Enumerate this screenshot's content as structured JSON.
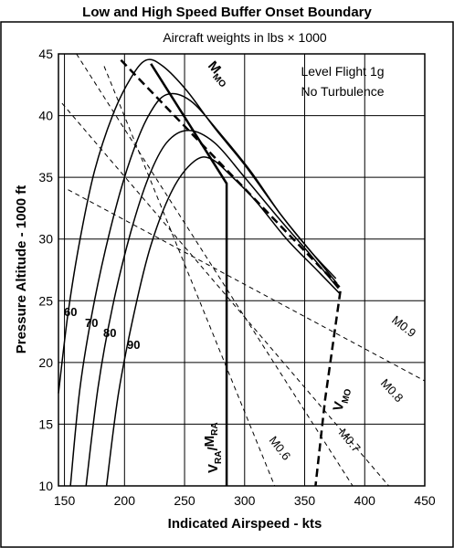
{
  "chart_data": {
    "type": "line",
    "title": "Low and High Speed Buffer Onset Boundary",
    "subtitle": "Aircraft weights in lbs × 1000",
    "note_lines": [
      "Level Flight 1g",
      "No Turbulence"
    ],
    "xlabel": "Indicated Airspeed - kts",
    "ylabel": "Pressure Altitude - 1000 ft",
    "xlim": [
      145,
      450
    ],
    "ylim": [
      10,
      45
    ],
    "xticks": [
      150,
      200,
      250,
      300,
      350,
      400,
      450
    ],
    "yticks": [
      10,
      15,
      20,
      25,
      30,
      35,
      40,
      45
    ],
    "grid": true,
    "weight_curves": [
      {
        "label": "60",
        "x": [
          145,
          153,
          163,
          175,
          190,
          205,
          218,
          232,
          252,
          275,
          300,
          330,
          355,
          376
        ],
        "y": [
          17.5,
          24,
          30,
          35.5,
          40,
          43,
          44.5,
          44,
          42,
          39,
          36,
          32,
          29,
          26.8
        ]
      },
      {
        "label": "70",
        "x": [
          155,
          163,
          175,
          190,
          205,
          220,
          235,
          255,
          280,
          305,
          330,
          355,
          377
        ],
        "y": [
          10,
          18,
          25,
          31.5,
          36.5,
          40,
          41.7,
          41.2,
          38.5,
          35.5,
          32,
          29,
          26.4
        ]
      },
      {
        "label": "80",
        "x": [
          168,
          178,
          190,
          205,
          220,
          235,
          253,
          275,
          300,
          330,
          355,
          378
        ],
        "y": [
          10,
          18,
          24.5,
          30.5,
          35,
          37.8,
          38.8,
          37.8,
          35,
          31.5,
          28.7,
          26
        ]
      },
      {
        "label": "90",
        "x": [
          185,
          195,
          208,
          222,
          240,
          258,
          272,
          290,
          310,
          335,
          360,
          379
        ],
        "y": [
          10,
          17.5,
          24,
          29.5,
          34,
          36.3,
          36.5,
          35,
          33,
          30,
          27.5,
          25.6
        ]
      }
    ],
    "vra_mra": {
      "label": "VRA/MRA",
      "x": [
        222,
        285,
        285
      ],
      "y": [
        44.2,
        34.5,
        10
      ]
    },
    "vmo_mmo": {
      "vmo_label": "VMO",
      "mmo_label": "MMO",
      "x": [
        197,
        380,
        367,
        359
      ],
      "y": [
        44.5,
        26,
        17,
        10
      ]
    },
    "mach_lines": [
      {
        "label": "M0.6",
        "x": [
          183,
          325
        ],
        "y": [
          44,
          10
        ]
      },
      {
        "label": "M0.7",
        "x": [
          160,
          390
        ],
        "y": [
          45,
          10
        ]
      },
      {
        "label": "M0.8",
        "x": [
          148,
          420
        ],
        "y": [
          41,
          10
        ]
      },
      {
        "label": "M0.9",
        "x": [
          153,
          450
        ],
        "y": [
          34,
          18.5
        ]
      }
    ]
  }
}
